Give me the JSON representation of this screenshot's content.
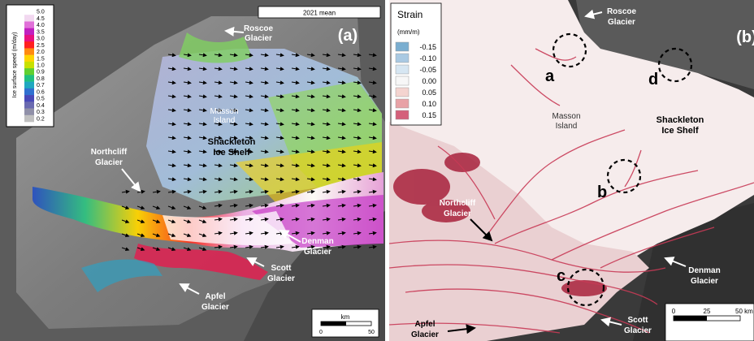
{
  "panel_a": {
    "letter": "(a)",
    "mean_label": "2021 mean",
    "colorbar": {
      "title": "Ice surface speed (m/day)",
      "ticks": [
        "5.0",
        "4.5",
        "4.0",
        "3.5",
        "3.0",
        "2.5",
        "2.0",
        "1.5",
        "1.0",
        "0.9",
        "0.8",
        "0.7",
        "0.6",
        "0.5",
        "0.4",
        "0.3",
        "0.2"
      ],
      "colors": [
        "#ffffff",
        "#f2d8f0",
        "#e070d8",
        "#c020c0",
        "#e81080",
        "#ff2020",
        "#ff8a10",
        "#ffd400",
        "#c8e000",
        "#60d030",
        "#20c080",
        "#20a8c0",
        "#3070d0",
        "#4848b8",
        "#6a6ab0",
        "#9090a8",
        "#c0c0c0"
      ]
    },
    "labels": {
      "roscoe": [
        "Roscoe",
        "Glacier"
      ],
      "masson": [
        "Masson",
        "Island"
      ],
      "shackleton": [
        "Shackleton",
        "Ice Shelf"
      ],
      "northcliff": [
        "Northcliff",
        "Glacier"
      ],
      "denman": [
        "Denman",
        "Glacier"
      ],
      "scott": [
        "Scott",
        "Glacier"
      ],
      "apfel": [
        "Apfel",
        "Glacier"
      ]
    },
    "scalebar": {
      "unit": "km",
      "start": "0",
      "end": "50"
    }
  },
  "panel_b": {
    "letter": "(b)",
    "legend": {
      "title": "Strain",
      "unit": "(mm/m)",
      "entries": [
        {
          "value": "-0.15",
          "color": "#7aaed0"
        },
        {
          "value": "-0.10",
          "color": "#a9c9e2"
        },
        {
          "value": "-0.05",
          "color": "#d6e6f2"
        },
        {
          "value": "0.00",
          "color": "#f7f7f7"
        },
        {
          "value": "0.05",
          "color": "#f4d4d0"
        },
        {
          "value": "0.10",
          "color": "#e8a2a6"
        },
        {
          "value": "0.15",
          "color": "#d4607a"
        }
      ]
    },
    "labels": {
      "roscoe": [
        "Roscoe",
        "Glacier"
      ],
      "masson": [
        "Masson",
        "Island"
      ],
      "shackleton": [
        "Shackleton",
        "Ice Shelf"
      ],
      "northcliff": [
        "Northcliff",
        "Glacier"
      ],
      "denman": [
        "Denman",
        "Glacier"
      ],
      "scott": [
        "Scott",
        "Glacier"
      ],
      "apfel": [
        "Apfel",
        "Glacier"
      ]
    },
    "circles": [
      "a",
      "b",
      "c",
      "d"
    ],
    "scalebar": {
      "start": "0",
      "mid": "25",
      "end": "50 km"
    }
  }
}
